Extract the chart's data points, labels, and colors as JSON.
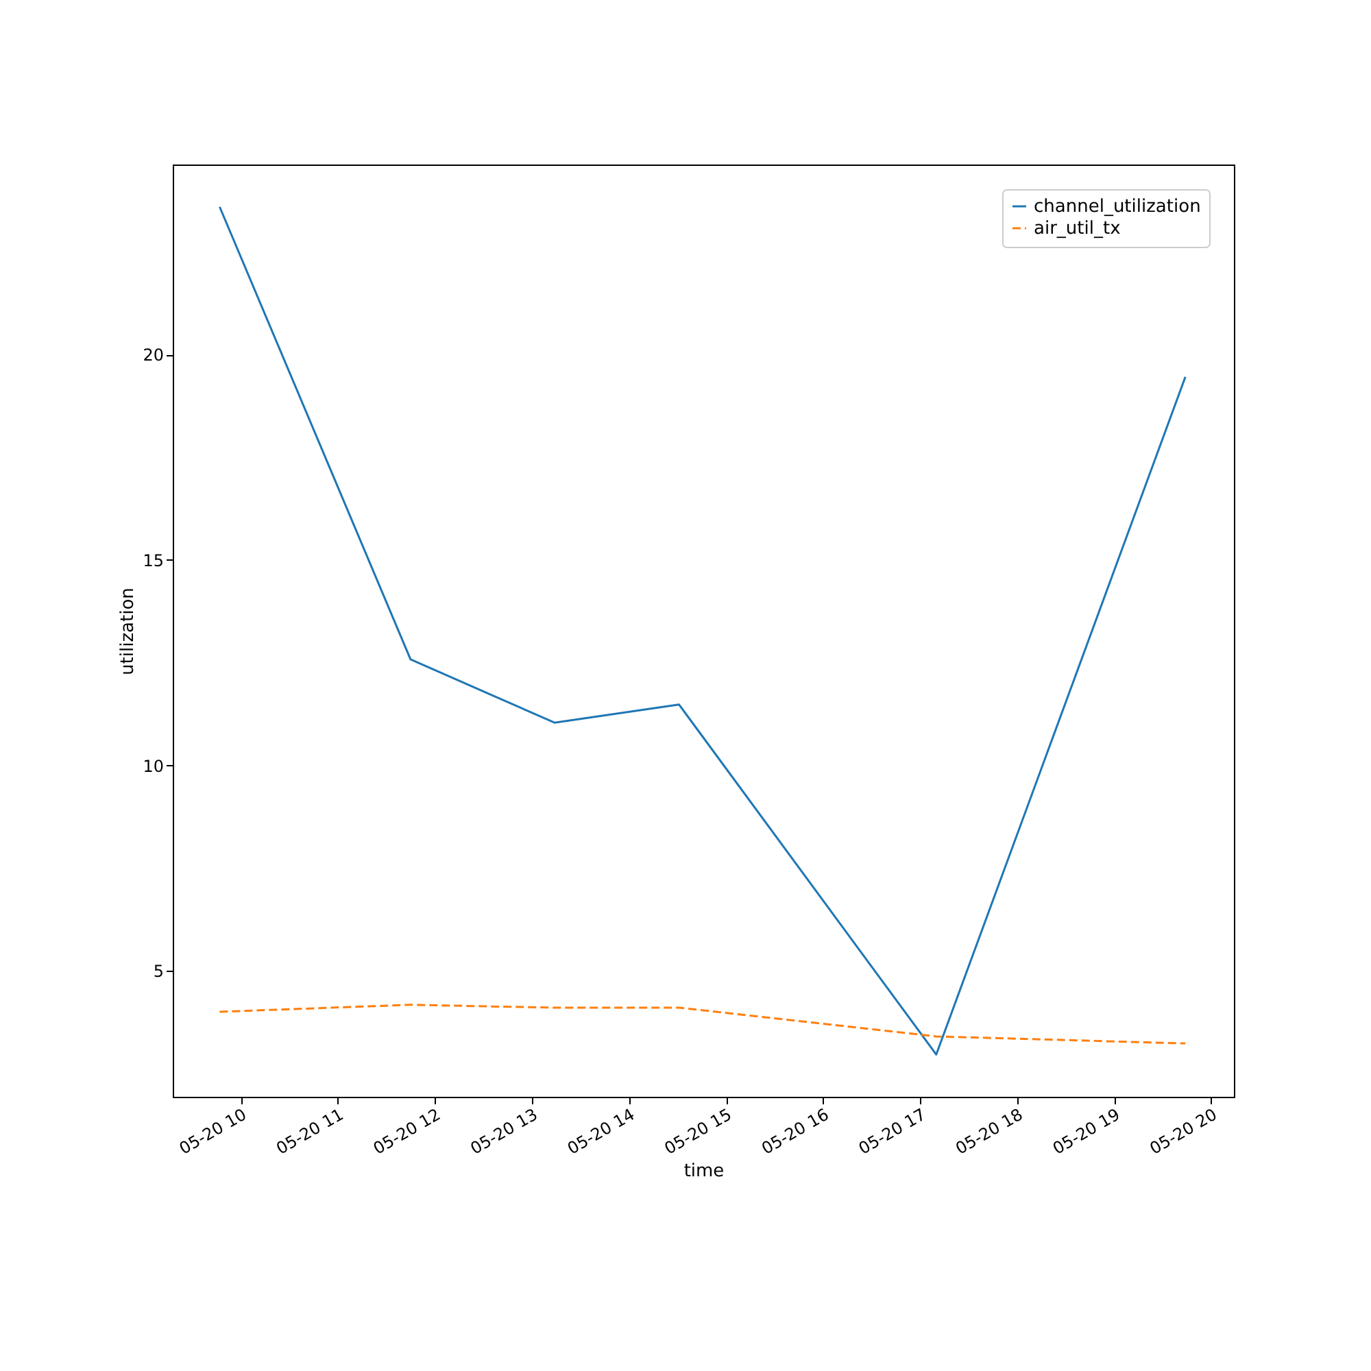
{
  "chart_data": {
    "type": "line",
    "xlabel": "time",
    "ylabel": "utilization",
    "x": [
      "--05-20T09:47",
      "--05-20T11:45",
      "--05-20T13:14",
      "--05-20T14:31",
      "--05-20T17:10",
      "--05-20T19:44"
    ],
    "series": [
      {
        "name": "channel_utilization",
        "color": "#1f77b4",
        "line_style": "solid",
        "values": [
          23.6,
          12.58,
          11.04,
          11.48,
          2.96,
          19.46
        ]
      },
      {
        "name": "air_util_tx",
        "color": "#ff7f0e",
        "line_style": "dashed",
        "values": [
          4.0,
          4.17,
          4.1,
          4.1,
          3.4,
          3.23
        ]
      }
    ],
    "xlim": [
      "--05-20T09:18",
      "--05-20T20:14"
    ],
    "xticks": [
      {
        "value": "--05-20T10:00",
        "label": "05-20 10"
      },
      {
        "value": "--05-20T11:00",
        "label": "05-20 11"
      },
      {
        "value": "--05-20T12:00",
        "label": "05-20 12"
      },
      {
        "value": "--05-20T13:00",
        "label": "05-20 13"
      },
      {
        "value": "--05-20T14:00",
        "label": "05-20 14"
      },
      {
        "value": "--05-20T15:00",
        "label": "05-20 15"
      },
      {
        "value": "--05-20T16:00",
        "label": "05-20 16"
      },
      {
        "value": "--05-20T17:00",
        "label": "05-20 17"
      },
      {
        "value": "--05-20T18:00",
        "label": "05-20 18"
      },
      {
        "value": "--05-20T19:00",
        "label": "05-20 19"
      },
      {
        "value": "--05-20T20:00",
        "label": "05-20 20"
      }
    ],
    "ylim": [
      1.93,
      24.63
    ],
    "yticks": [
      5,
      10,
      15,
      20
    ],
    "grid": false,
    "legend": "top right"
  }
}
